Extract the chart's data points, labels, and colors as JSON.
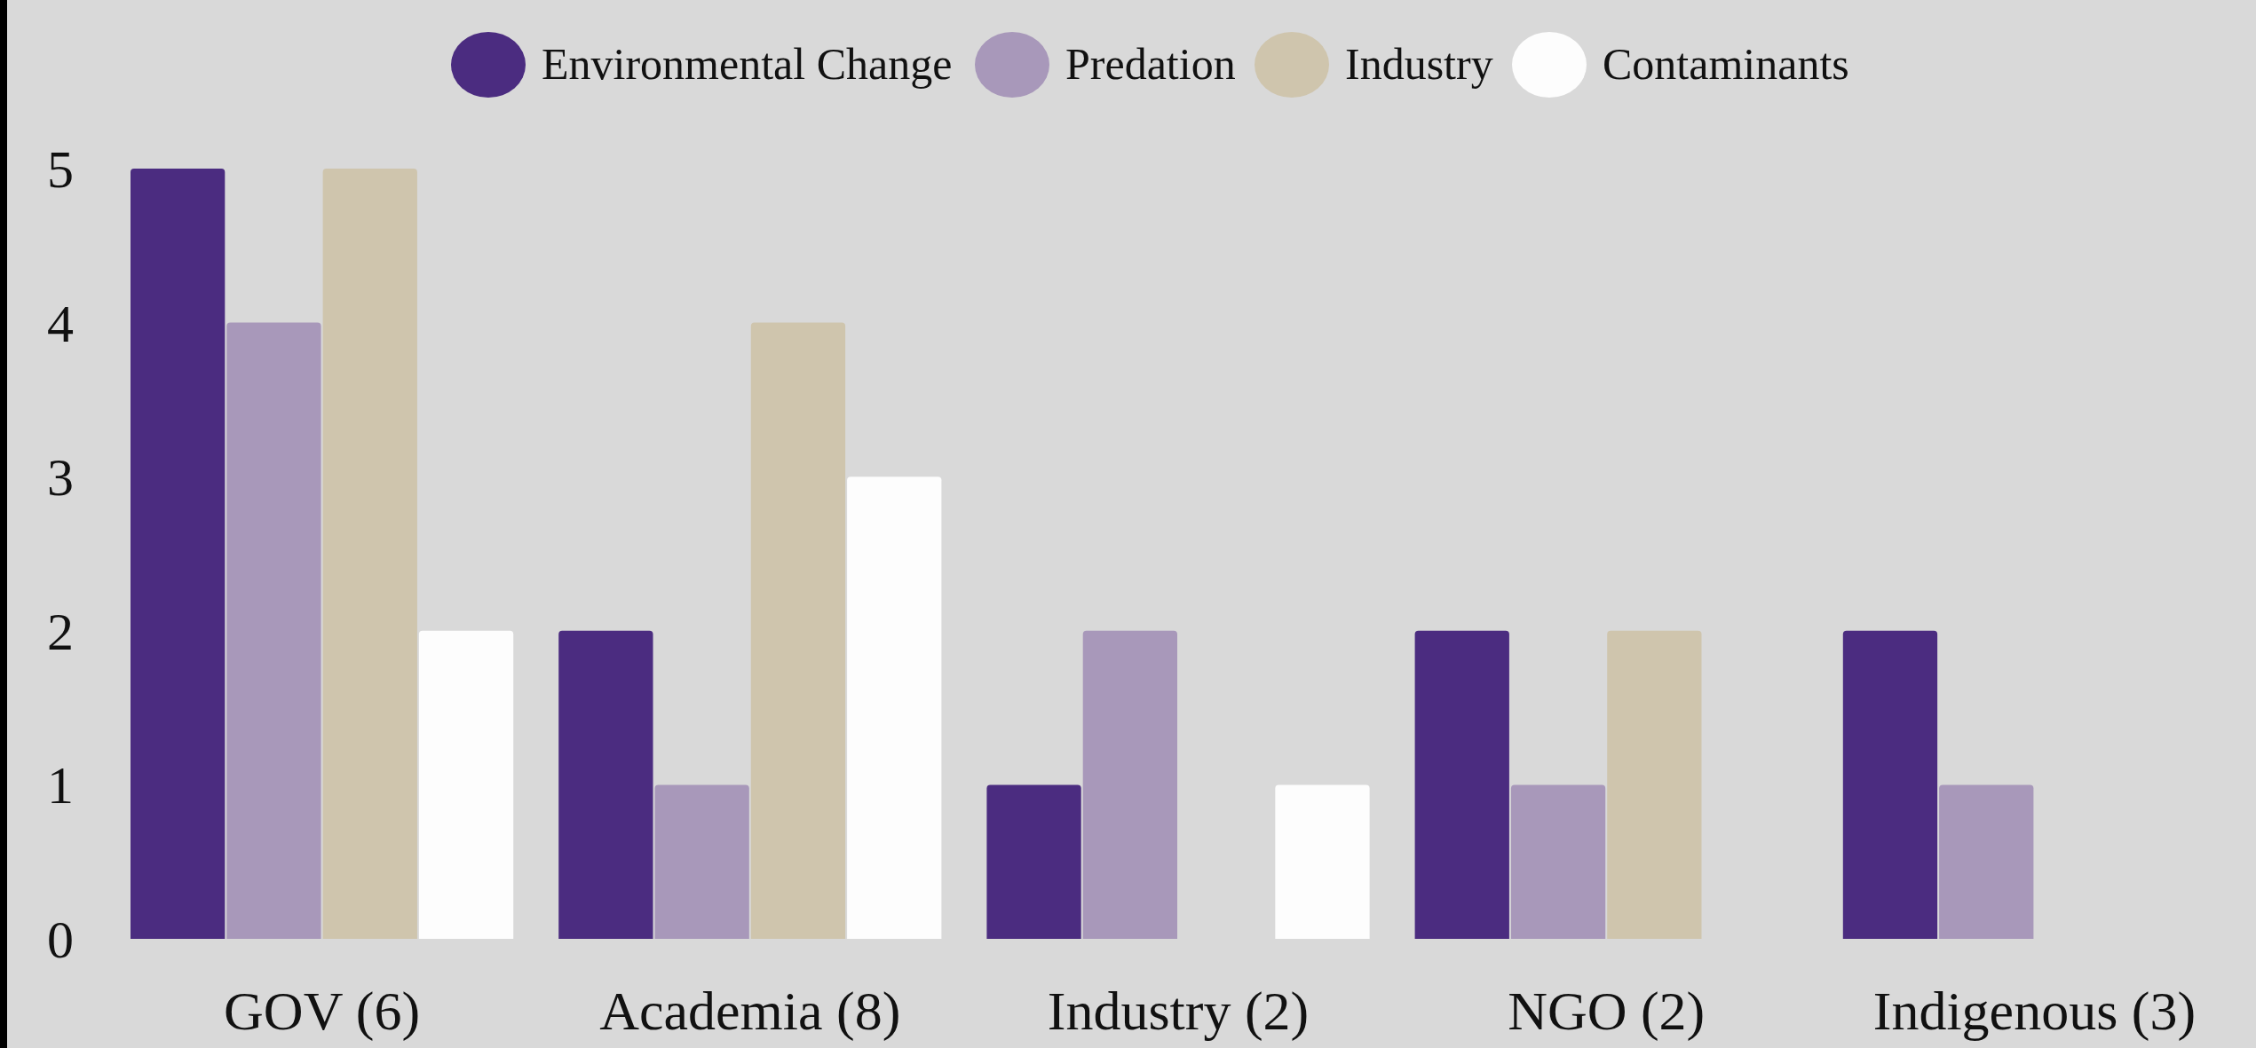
{
  "chart_data": {
    "type": "bar",
    "categories": [
      "GOV (6)",
      "Academia (8)",
      "Industry (2)",
      "NGO (2)",
      "Indigenous (3)"
    ],
    "series": [
      {
        "name": "Environmental Change",
        "color": "#4b2c80",
        "values": [
          5,
          2,
          1,
          2,
          2
        ]
      },
      {
        "name": "Predation",
        "color": "#a898ba",
        "values": [
          4,
          1,
          2,
          1,
          1
        ]
      },
      {
        "name": "Industry",
        "color": "#cfc5ad",
        "values": [
          5,
          4,
          0,
          2,
          0
        ]
      },
      {
        "name": "Contaminants",
        "color": "#fdfdfd",
        "values": [
          2,
          3,
          1,
          0,
          0
        ]
      }
    ],
    "ylim": [
      0,
      5
    ],
    "yticks": [
      0,
      1,
      2,
      3,
      4,
      5
    ],
    "grid": false,
    "legend": "top"
  }
}
